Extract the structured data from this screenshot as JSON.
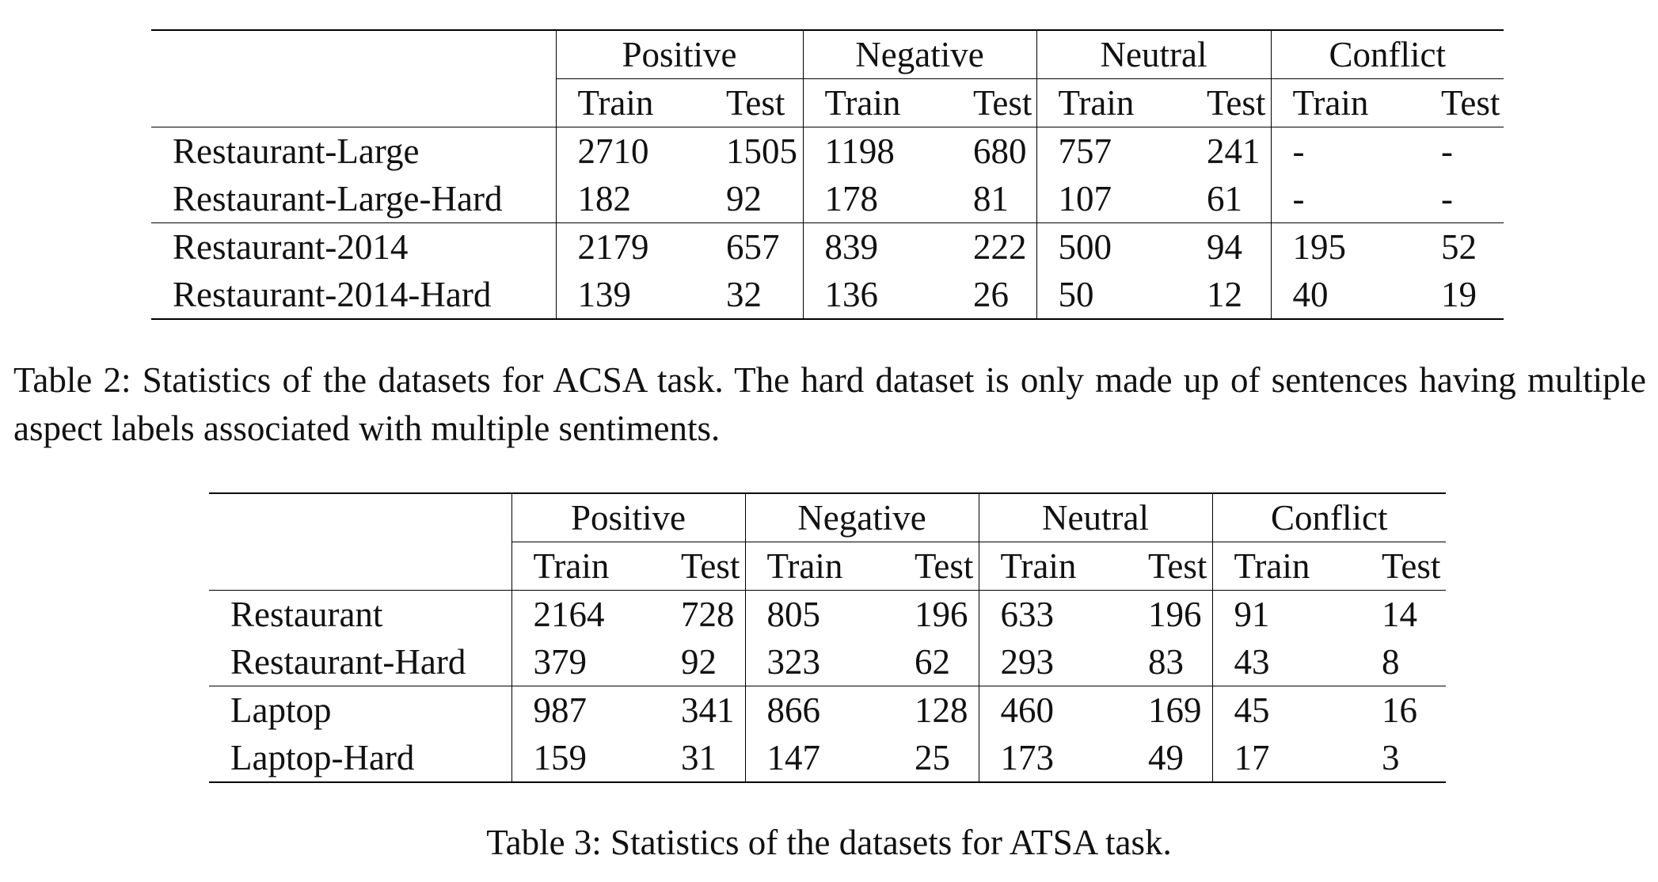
{
  "table_2": {
    "groups": [
      "Positive",
      "Negative",
      "Neutral",
      "Conflict"
    ],
    "subheaders": [
      "Train",
      "Test",
      "Train",
      "Test",
      "Train",
      "Test",
      "Train",
      "Test"
    ],
    "rows": [
      {
        "label": "Restaurant-Large",
        "values": [
          2710,
          1505,
          1198,
          680,
          757,
          241,
          "-",
          "-"
        ]
      },
      {
        "label": "Restaurant-Large-Hard",
        "values": [
          182,
          92,
          178,
          81,
          107,
          61,
          "-",
          "-"
        ]
      },
      {
        "label": "Restaurant-2014",
        "values": [
          2179,
          657,
          839,
          222,
          500,
          94,
          195,
          52
        ]
      },
      {
        "label": "Restaurant-2014-Hard",
        "values": [
          139,
          32,
          136,
          26,
          50,
          12,
          40,
          19
        ]
      }
    ],
    "caption": "Table 2: Statistics of the datasets for ACSA task. The hard dataset is only made up of sentences having multiple aspect labels associated with multiple sentiments."
  },
  "table_3": {
    "groups": [
      "Positive",
      "Negative",
      "Neutral",
      "Conflict"
    ],
    "subheaders": [
      "Train",
      "Test",
      "Train",
      "Test",
      "Train",
      "Test",
      "Train",
      "Test"
    ],
    "rows": [
      {
        "label": "Restaurant",
        "values": [
          2164,
          728,
          805,
          196,
          633,
          196,
          91,
          14
        ]
      },
      {
        "label": "Restaurant-Hard",
        "values": [
          379,
          92,
          323,
          62,
          293,
          83,
          43,
          8
        ]
      },
      {
        "label": "Laptop",
        "values": [
          987,
          341,
          866,
          128,
          460,
          169,
          45,
          16
        ]
      },
      {
        "label": "Laptop-Hard",
        "values": [
          159,
          31,
          147,
          25,
          173,
          49,
          17,
          3
        ]
      }
    ],
    "caption": "Table 3: Statistics of the datasets for ATSA task."
  }
}
